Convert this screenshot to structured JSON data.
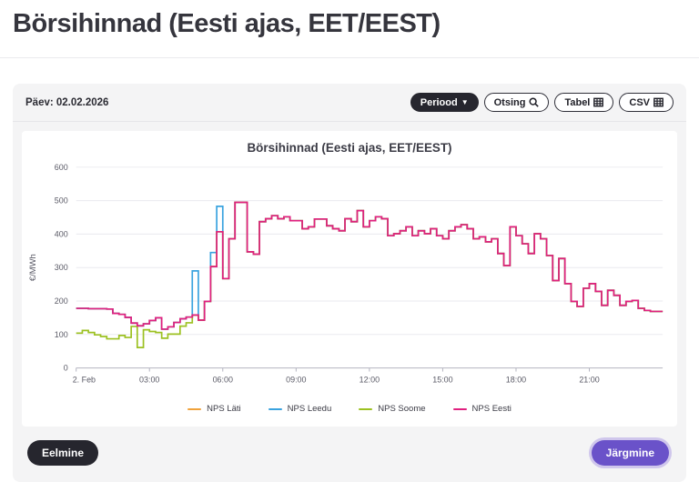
{
  "page": {
    "title": "Börsihinnad (Eesti ajas, EET/EEST)"
  },
  "toolbar": {
    "date_label": "Päev: 02.02.2026",
    "periood_label": "Periood",
    "otsing_label": "Otsing",
    "tabel_label": "Tabel",
    "csv_label": "CSV"
  },
  "footer": {
    "prev_label": "Eelmine",
    "next_label": "Järgmine"
  },
  "colors": {
    "panel_bg": "#f4f4f5",
    "dark_button": "#26262e",
    "next_button": "#6a52c9",
    "next_ring": "#cfc6ec",
    "grid": "#eaeaef",
    "axis": "#b4b4c0",
    "axis_text": "#5a5a66",
    "title_text": "#3b3b45"
  },
  "chart_data": {
    "type": "line",
    "step": true,
    "title": "Börsihinnad (Eesti ajas, EET/EEST)",
    "xlabel": "",
    "ylabel": "€/MWh",
    "ylim": [
      0,
      600
    ],
    "yticks": [
      0,
      100,
      200,
      300,
      400,
      500,
      600
    ],
    "xlim_hours": [
      0,
      24
    ],
    "x_resolution_minutes": 15,
    "grid": "horizontal",
    "legend_position": "bottom",
    "xticks": [
      {
        "t": 0,
        "label": "2. Feb"
      },
      {
        "t": 3,
        "label": "03:00"
      },
      {
        "t": 6,
        "label": "06:00"
      },
      {
        "t": 9,
        "label": "09:00"
      },
      {
        "t": 12,
        "label": "12:00"
      },
      {
        "t": 15,
        "label": "15:00"
      },
      {
        "t": 18,
        "label": "18:00"
      },
      {
        "t": 21,
        "label": "21:00"
      }
    ],
    "series": [
      {
        "name": "NPS Läti",
        "color": "#f0a23c",
        "values": [
          178,
          178,
          177,
          177,
          177,
          176,
          163,
          160,
          151,
          134,
          126,
          132,
          142,
          150,
          116,
          123,
          136,
          147,
          152,
          158,
          143,
          199,
          303,
          407,
          267,
          386,
          495,
          495,
          347,
          340,
          437,
          446,
          455,
          446,
          452,
          440,
          440,
          416,
          422,
          445,
          445,
          425,
          416,
          410,
          446,
          437,
          470,
          422,
          440,
          452,
          446,
          395,
          401,
          410,
          422,
          395,
          410,
          401,
          416,
          395,
          386,
          410,
          422,
          428,
          416,
          386,
          392,
          377,
          386,
          342,
          306,
          422,
          395,
          371,
          342,
          401,
          386,
          336,
          261,
          327,
          252,
          199,
          184,
          238,
          252,
          229,
          187,
          232,
          217,
          187,
          199,
          202,
          178,
          172,
          169,
          169
        ]
      },
      {
        "name": "NPS Leedu",
        "color": "#3aa3df",
        "values": [
          178,
          178,
          177,
          177,
          177,
          176,
          163,
          160,
          151,
          134,
          126,
          132,
          142,
          150,
          116,
          123,
          136,
          147,
          152,
          290,
          143,
          199,
          345,
          483,
          267,
          386,
          495,
          495,
          347,
          340,
          437,
          446,
          455,
          446,
          452,
          440,
          440,
          416,
          422,
          445,
          445,
          425,
          416,
          410,
          446,
          437,
          470,
          422,
          440,
          452,
          446,
          395,
          401,
          410,
          422,
          395,
          410,
          401,
          416,
          395,
          386,
          410,
          422,
          428,
          416,
          386,
          392,
          377,
          386,
          342,
          306,
          422,
          395,
          371,
          342,
          401,
          386,
          336,
          261,
          327,
          252,
          199,
          184,
          238,
          252,
          229,
          187,
          232,
          217,
          187,
          199,
          202,
          178,
          172,
          169,
          169
        ]
      },
      {
        "name": "NPS Soome",
        "color": "#9cc121",
        "values": [
          104,
          112,
          106,
          99,
          94,
          87,
          87,
          97,
          91,
          124,
          61,
          114,
          109,
          106,
          89,
          101,
          101,
          125,
          135,
          158,
          143,
          199,
          303,
          407,
          267,
          386,
          495,
          495,
          347,
          340,
          437,
          446,
          455,
          446,
          452,
          440,
          440,
          416,
          422,
          445,
          445,
          425,
          416,
          410,
          446,
          437,
          470,
          422,
          440,
          452,
          446,
          395,
          401,
          410,
          422,
          395,
          410,
          401,
          416,
          395,
          386,
          410,
          422,
          428,
          416,
          386,
          392,
          377,
          386,
          342,
          306,
          422,
          395,
          371,
          342,
          401,
          386,
          336,
          261,
          327,
          252,
          199,
          184,
          238,
          252,
          229,
          187,
          232,
          217,
          187,
          199,
          202,
          178,
          172,
          169,
          169
        ]
      },
      {
        "name": "NPS Eesti",
        "color": "#e0207f",
        "values": [
          178,
          178,
          177,
          177,
          177,
          176,
          163,
          160,
          151,
          134,
          126,
          132,
          142,
          150,
          116,
          123,
          136,
          147,
          152,
          158,
          143,
          199,
          303,
          407,
          267,
          386,
          495,
          495,
          347,
          340,
          437,
          446,
          455,
          446,
          452,
          440,
          440,
          416,
          422,
          445,
          445,
          425,
          416,
          410,
          446,
          437,
          470,
          422,
          440,
          452,
          446,
          395,
          401,
          410,
          422,
          395,
          410,
          401,
          416,
          395,
          386,
          410,
          422,
          428,
          416,
          386,
          392,
          377,
          386,
          342,
          306,
          422,
          395,
          371,
          342,
          401,
          386,
          336,
          261,
          327,
          252,
          199,
          184,
          238,
          252,
          229,
          187,
          232,
          217,
          187,
          199,
          202,
          178,
          172,
          169,
          169
        ]
      }
    ]
  }
}
